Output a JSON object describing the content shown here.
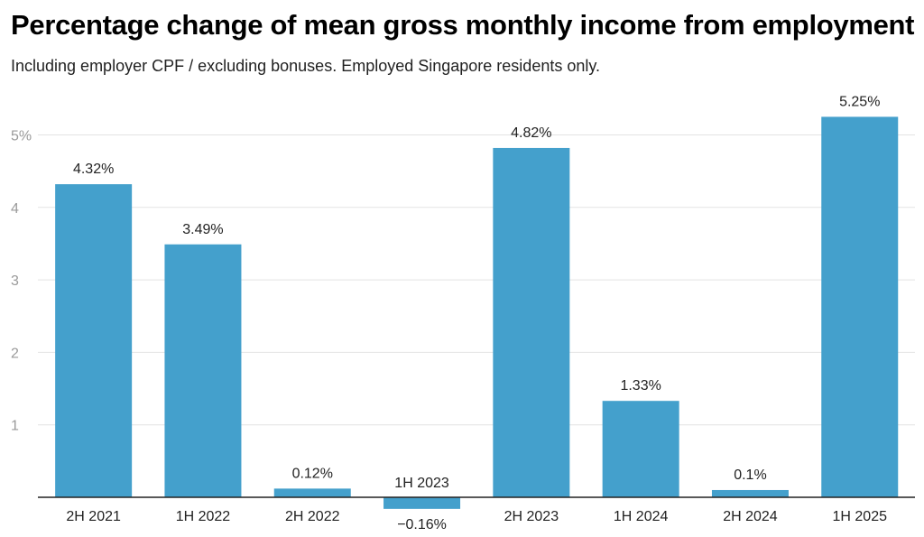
{
  "title": "Percentage change of mean gross monthly income from employment",
  "subtitle": "Including employer CPF / excluding bonuses. Employed Singapore residents only.",
  "chart_data": {
    "type": "bar",
    "categories": [
      "2H 2021",
      "1H 2022",
      "2H 2022",
      "1H 2023",
      "2H 2023",
      "1H 2024",
      "2H 2024",
      "1H 2025"
    ],
    "values": [
      4.32,
      3.49,
      0.12,
      -0.16,
      4.82,
      1.33,
      0.1,
      5.25
    ],
    "data_labels": [
      "4.32%",
      "3.49%",
      "0.12%",
      "−0.16%",
      "4.82%",
      "1.33%",
      "0.1%",
      "5.25%"
    ],
    "y_ticks": [
      1,
      2,
      3,
      4,
      5
    ],
    "y_tick_labels": [
      "1",
      "2",
      "3",
      "4",
      "5%"
    ],
    "ylim": [
      -0.16,
      5.25
    ],
    "bar_color": "#44a0cc",
    "grid": true,
    "legend": "none"
  }
}
